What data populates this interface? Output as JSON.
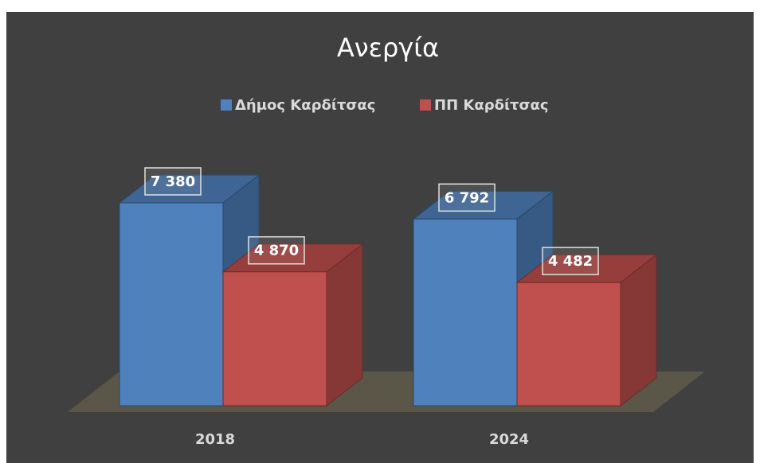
{
  "chart_data": {
    "type": "bar3d",
    "title": "Ανεργία",
    "categories": [
      "2018",
      "2024"
    ],
    "series": [
      {
        "name": "Δήμος Καρδίτσας",
        "color": "#4f81bd",
        "values": [
          7380,
          6792
        ],
        "value_labels": [
          "7 380",
          "6 792"
        ]
      },
      {
        "name": "ΠΠ Καρδίτσας",
        "color": "#c0504d",
        "values": [
          4870,
          4482
        ],
        "value_labels": [
          "4 870",
          "4 482"
        ]
      }
    ],
    "legend": "top"
  }
}
